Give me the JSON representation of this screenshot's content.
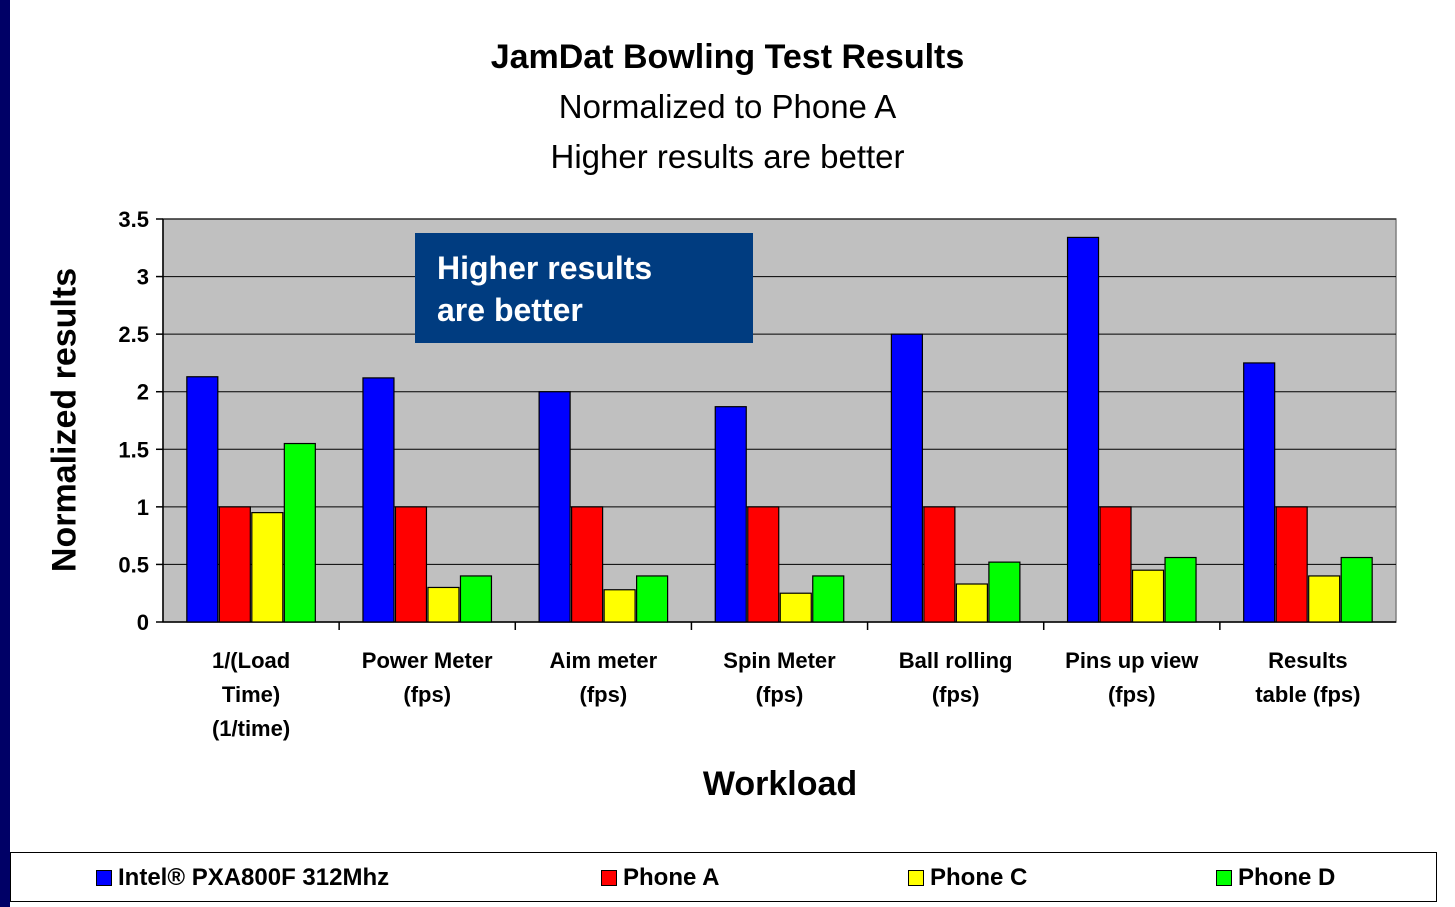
{
  "chart_data": {
    "type": "bar",
    "title": "JamDat Bowling Test Results",
    "subtitle": [
      "Normalized to Phone A",
      "Higher results are better"
    ],
    "xlabel": "Workload",
    "ylabel": "Normalized results",
    "ylim": [
      0,
      3.5
    ],
    "yticks": [
      "3.5",
      "3",
      "2.5",
      "2",
      "1.5",
      "1",
      "0.5",
      "0"
    ],
    "grid": true,
    "legend_position": "bottom",
    "categories": [
      [
        "1/(Load",
        "Time)",
        "(1/time)"
      ],
      [
        "Power Meter",
        "(fps)"
      ],
      [
        "Aim meter",
        "(fps)"
      ],
      [
        "Spin Meter",
        "(fps)"
      ],
      [
        "Ball rolling",
        "(fps)"
      ],
      [
        "Pins up view",
        "(fps)"
      ],
      [
        "Results",
        "table (fps)"
      ]
    ],
    "series": [
      {
        "name": "Intel® PXA800F 312Mhz",
        "color": "#0000ff",
        "values": [
          2.13,
          2.12,
          2.0,
          1.87,
          2.5,
          3.34,
          2.25
        ]
      },
      {
        "name": "Phone A",
        "color": "#ff0000",
        "values": [
          1.0,
          1.0,
          1.0,
          1.0,
          1.0,
          1.0,
          1.0
        ]
      },
      {
        "name": "Phone C",
        "color": "#ffff00",
        "values": [
          0.95,
          0.3,
          0.28,
          0.25,
          0.33,
          0.45,
          0.4
        ]
      },
      {
        "name": "Phone D",
        "color": "#00ff00",
        "values": [
          1.55,
          0.4,
          0.4,
          0.4,
          0.52,
          0.56,
          0.56
        ]
      }
    ],
    "annotation": [
      "Higher results",
      "are better"
    ],
    "plot_background": "#c0c0c0"
  }
}
